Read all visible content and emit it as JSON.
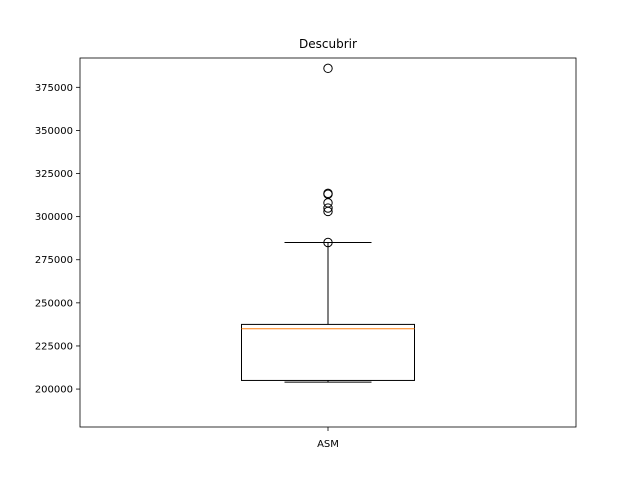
{
  "chart_data": {
    "type": "box",
    "title": "Descubrir",
    "xlabel": "",
    "ylabel": "",
    "categories": [
      "ASM"
    ],
    "ylim": [
      178000,
      392000
    ],
    "yticks": [
      200000,
      225000,
      250000,
      275000,
      300000,
      325000,
      350000,
      375000
    ],
    "grid": false,
    "legend": "none",
    "boxes": [
      {
        "category": "ASM",
        "whisker_low": 204000,
        "q1": 205000,
        "median": 235000,
        "q3": 237500,
        "whisker_high": 285000,
        "outliers": [
          285000,
          303000,
          305000,
          308000,
          313000,
          313500,
          386000
        ]
      }
    ],
    "colors": {
      "box": "#000000",
      "median": "#ff7f0e",
      "outlier": "#000000"
    }
  }
}
